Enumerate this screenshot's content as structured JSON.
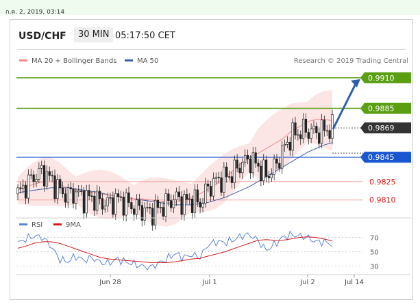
{
  "datetime": "ก.ค. 2, 2019, 03:14",
  "header": {
    "symbol": "USD/CHF",
    "timeframe": "30 MIN",
    "time": "05:17:50 CET"
  },
  "colors": {
    "ma20": "#f08a8a",
    "ma50": "#3a5fa8",
    "band_fill": "#fbe0e0",
    "resistance": "#5a9e12",
    "support_line": "#1a56cf",
    "secondary": "#f4a0a0",
    "secondary_text": "#dd1111",
    "current": "#333333",
    "candle": "#222222",
    "rsi": "#5b84d6",
    "ma9": "#d11a1a",
    "arrow": "#2f5ea8"
  },
  "chart_data": [
    {
      "type": "line",
      "title": "",
      "legend": [
        {
          "name": "MA 20 + Bollinger Bands",
          "color": "#f08a8a"
        },
        {
          "name": "MA 50",
          "color": "#3a5fa8"
        }
      ],
      "legend_position": "top-left",
      "credit": "Research © 2019 Trading Central",
      "x_labels": [
        "Jun 28",
        "Jul 1",
        "Jul 2",
        "Jul 14"
      ],
      "ylim": [
        0.9797,
        0.992
      ],
      "grid": false,
      "series": [
        {
          "name": "MA 20 + Bollinger Bands",
          "values": [
            0.9818,
            0.9821,
            0.9823,
            0.9825,
            0.9825,
            0.9823,
            0.982,
            0.9818,
            0.9817,
            0.9816,
            0.9815,
            0.9814,
            0.9813,
            0.9812,
            0.9811,
            0.9811,
            0.981,
            0.9809,
            0.9808,
            0.9808,
            0.981,
            0.9812,
            0.9815,
            0.9819,
            0.9823,
            0.9828,
            0.9834,
            0.984,
            0.9845,
            0.9848,
            0.9852,
            0.9856,
            0.986,
            0.9866,
            0.987,
            0.9874,
            0.9876,
            0.9876,
            0.9875
          ]
        },
        {
          "name": "MA 50",
          "values": [
            0.9816,
            0.9817,
            0.9818,
            0.9819,
            0.982,
            0.982,
            0.982,
            0.9819,
            0.9818,
            0.9817,
            0.9816,
            0.9814,
            0.9813,
            0.9812,
            0.9811,
            0.981,
            0.9809,
            0.9808,
            0.9807,
            0.9806,
            0.9806,
            0.9806,
            0.9807,
            0.9808,
            0.981,
            0.9812,
            0.9815,
            0.9818,
            0.9821,
            0.9825,
            0.9829,
            0.9833,
            0.9837,
            0.9841,
            0.9845,
            0.9849,
            0.9852,
            0.9855,
            0.9857
          ]
        },
        {
          "name": "close",
          "values": [
            0.9815,
            0.9822,
            0.983,
            0.9833,
            0.9827,
            0.9818,
            0.9814,
            0.9816,
            0.9811,
            0.9812,
            0.9808,
            0.9807,
            0.9811,
            0.9808,
            0.9804,
            0.9802,
            0.98,
            0.9803,
            0.9807,
            0.9812,
            0.9808,
            0.981,
            0.9807,
            0.982,
            0.9826,
            0.9828,
            0.9832,
            0.984,
            0.9843,
            0.9838,
            0.983,
            0.9836,
            0.985,
            0.9862,
            0.9866,
            0.9867,
            0.9865,
            0.9867,
            0.9869
          ]
        }
      ],
      "levels": [
        {
          "value": 0.991,
          "label": "0.9910",
          "kind": "resistance"
        },
        {
          "value": 0.9885,
          "label": "0.9885",
          "kind": "resistance"
        },
        {
          "value": 0.9869,
          "label": "0.9869",
          "kind": "current"
        },
        {
          "value": 0.9845,
          "label": "0.9845",
          "kind": "support"
        },
        {
          "value": 0.9825,
          "label": "0.9825",
          "kind": "secondary"
        },
        {
          "value": 0.981,
          "label": "0.9810",
          "kind": "secondary"
        }
      ],
      "arrow_target": 0.991
    },
    {
      "type": "line",
      "title": "",
      "legend": [
        {
          "name": "RSI",
          "color": "#5b84d6"
        },
        {
          "name": "9MA",
          "color": "#d11a1a"
        }
      ],
      "ylim": [
        22,
        82
      ],
      "y_ticks": [
        70,
        50,
        30
      ],
      "series": [
        {
          "name": "RSI",
          "values": [
            62,
            68,
            72,
            70,
            58,
            40,
            36,
            44,
            38,
            42,
            35,
            34,
            40,
            36,
            33,
            30,
            28,
            34,
            40,
            48,
            42,
            46,
            42,
            60,
            64,
            63,
            66,
            72,
            74,
            66,
            52,
            60,
            70,
            74,
            72,
            70,
            64,
            64,
            60
          ]
        },
        {
          "name": "9MA",
          "values": [
            55,
            58,
            62,
            64,
            64,
            62,
            58,
            54,
            50,
            46,
            42,
            40,
            39,
            38,
            37,
            36,
            35,
            35,
            35,
            36,
            38,
            40,
            41,
            44,
            47,
            50,
            54,
            58,
            62,
            66,
            67,
            66,
            66,
            68,
            70,
            71,
            70,
            68,
            65
          ]
        }
      ]
    }
  ]
}
